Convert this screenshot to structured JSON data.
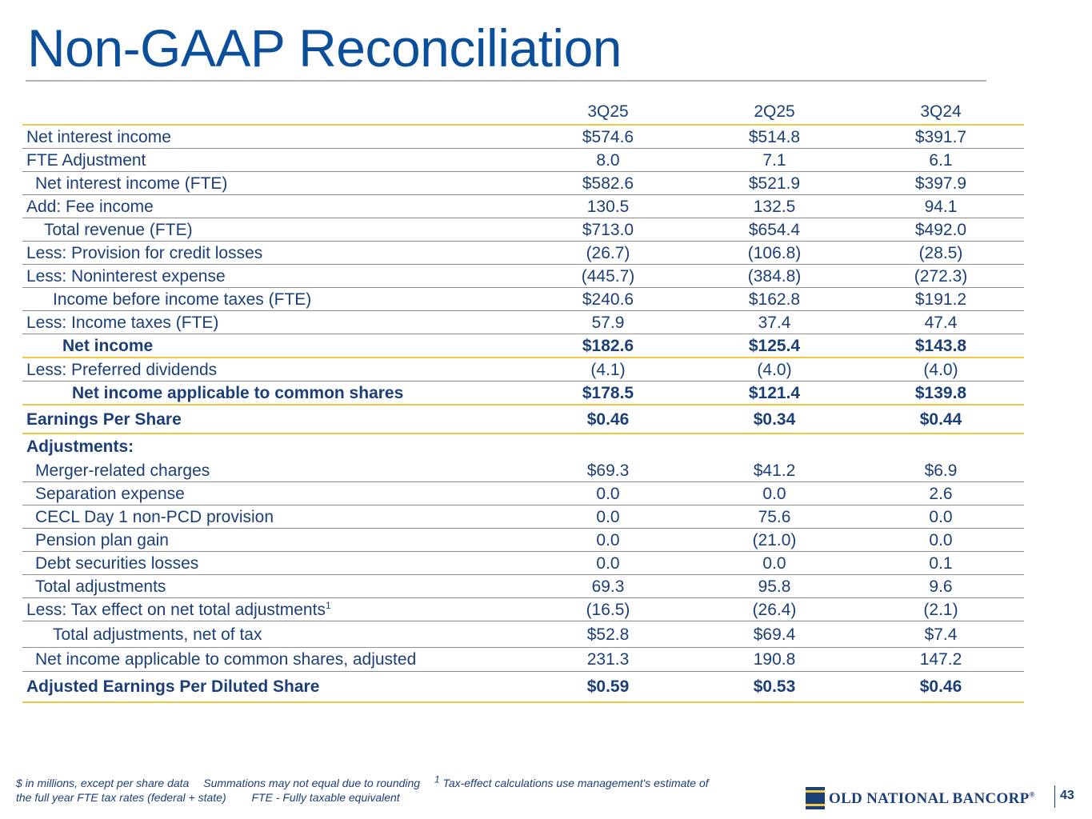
{
  "header": {
    "title": "Non-GAAP Reconciliation"
  },
  "table": {
    "columns": [
      "3Q25",
      "2Q25",
      "3Q24"
    ],
    "rows": [
      {
        "label": "Net interest income",
        "values": [
          "$574.6",
          "$514.8",
          "$391.7"
        ]
      },
      {
        "label": "FTE Adjustment",
        "values": [
          "8.0",
          "7.1",
          "6.1"
        ]
      },
      {
        "label": "Net interest income (FTE)",
        "values": [
          "$582.6",
          "$521.9",
          "$397.9"
        ]
      },
      {
        "label": "Add: Fee income",
        "values": [
          "130.5",
          "132.5",
          "94.1"
        ]
      },
      {
        "label": "Total revenue (FTE)",
        "values": [
          "$713.0",
          "$654.4",
          "$492.0"
        ]
      },
      {
        "label": "Less: Provision for credit losses",
        "values": [
          "(26.7)",
          "(106.8)",
          "(28.5)"
        ]
      },
      {
        "label": "Less: Noninterest expense",
        "values": [
          "(445.7)",
          "(384.8)",
          "(272.3)"
        ]
      },
      {
        "label": "Income before income taxes (FTE)",
        "values": [
          "$240.6",
          "$162.8",
          "$191.2"
        ]
      },
      {
        "label": "Less: Income taxes (FTE)",
        "values": [
          "57.9",
          "37.4",
          "47.4"
        ]
      },
      {
        "label": "Net income",
        "values": [
          "$182.6",
          "$125.4",
          "$143.8"
        ]
      },
      {
        "label": "Less: Preferred dividends",
        "values": [
          "(4.1)",
          "(4.0)",
          "(4.0)"
        ]
      },
      {
        "label": "Net income applicable to common shares",
        "values": [
          "$178.5",
          "$121.4",
          "$139.8"
        ]
      },
      {
        "label": "Earnings Per Share",
        "values": [
          "$0.46",
          "$0.34",
          "$0.44"
        ]
      },
      {
        "label": "Adjustments:",
        "values": []
      },
      {
        "label": "Merger-related charges",
        "values": [
          "$69.3",
          "$41.2",
          "$6.9"
        ]
      },
      {
        "label": "Separation expense",
        "values": [
          "0.0",
          "0.0",
          "2.6"
        ]
      },
      {
        "label": "CECL Day 1 non-PCD provision",
        "values": [
          "0.0",
          "75.6",
          "0.0"
        ]
      },
      {
        "label": "Pension plan gain",
        "values": [
          "0.0",
          "(21.0)",
          "0.0"
        ]
      },
      {
        "label": "Debt securities losses",
        "values": [
          "0.0",
          "0.0",
          "0.1"
        ]
      },
      {
        "label": "Total adjustments",
        "values": [
          "69.3",
          "95.8",
          "9.6"
        ]
      },
      {
        "label": "Less: Tax effect on net total adjustments",
        "note": "1",
        "values": [
          "(16.5)",
          "(26.4)",
          "(2.1)"
        ]
      },
      {
        "label": "Total adjustments, net of tax",
        "values": [
          "$52.8",
          "$69.4",
          "$7.4"
        ]
      },
      {
        "label": "Net income applicable to common shares, adjusted",
        "values": [
          "231.3",
          "190.8",
          "147.2"
        ]
      },
      {
        "label": "Adjusted Earnings Per Diluted Share",
        "values": [
          "$0.59",
          "$0.53",
          "$0.46"
        ]
      }
    ]
  },
  "footnote": {
    "items": [
      "$ in millions, except per share data",
      "Summations may not equal due to rounding",
      "Tax-effect calculations use management's estimate of the full year FTE tax rates (federal + state)",
      "FTE - Fully taxable equivalent"
    ],
    "note": "1"
  },
  "footer": {
    "logo": "OLD NATIONAL BANCORP",
    "mark": "®",
    "page_number": "43"
  }
}
